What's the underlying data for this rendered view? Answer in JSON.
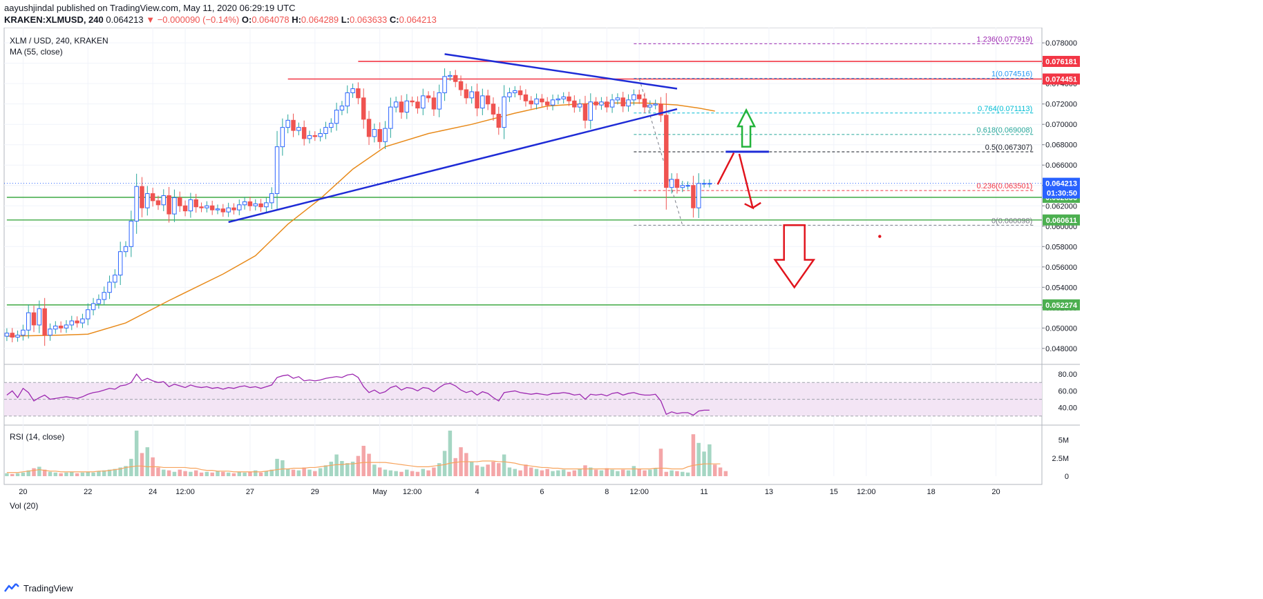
{
  "header": {
    "line1": "aayushjindal published on TradingView.com, May 11, 2020 06:29:19 UTC",
    "symbol": "KRAKEN:XLMUSD, 240",
    "last": "0.064213",
    "change": "▼ −0.000090 (−0.14%)",
    "o_label": "O:",
    "o": "0.064078",
    "h_label": "H:",
    "h": "0.064289",
    "l_label": "L:",
    "l": "0.063633",
    "c_label": "C:",
    "c": "0.064213"
  },
  "panes": {
    "price_title": "XLM / USD, 240, KRAKEN",
    "ma_label": "MA (55, close)",
    "rsi_label": "RSI (14, close)",
    "vol_label": "Vol (20)"
  },
  "footer": {
    "brand": "TradingView"
  },
  "chart_data": {
    "type": "candlestick",
    "symbol": "XLM / USD",
    "timeframe": "240",
    "exchange": "KRAKEN",
    "ylim": [
      0.0465,
      0.0795
    ],
    "price_ticks": [
      "0.078000",
      "0.076000",
      "0.074000",
      "0.072000",
      "0.070000",
      "0.068000",
      "0.066000",
      "0.064000",
      "0.062000",
      "0.060000",
      "0.058000",
      "0.056000",
      "0.054000",
      "0.052000",
      "0.050000",
      "0.048000"
    ],
    "x_ticks": [
      {
        "label": "20",
        "bar": 3
      },
      {
        "label": "22",
        "bar": 15
      },
      {
        "label": "24",
        "bar": 27
      },
      {
        "label": "12:00",
        "bar": 33
      },
      {
        "label": "27",
        "bar": 45
      },
      {
        "label": "29",
        "bar": 57
      },
      {
        "label": "May",
        "bar": 69
      },
      {
        "label": "12:00",
        "bar": 75
      },
      {
        "label": "4",
        "bar": 87
      },
      {
        "label": "6",
        "bar": 99
      },
      {
        "label": "8",
        "bar": 111
      },
      {
        "label": "12:00",
        "bar": 117
      },
      {
        "label": "11",
        "bar": 129
      },
      {
        "label": "13",
        "bar": 141
      },
      {
        "label": "15",
        "bar": 153
      },
      {
        "label": "12:00",
        "bar": 159
      },
      {
        "label": "18",
        "bar": 171
      },
      {
        "label": "20",
        "bar": 183
      }
    ],
    "total_bars": 192,
    "candles_close": [
      0.0495,
      0.0491,
      0.0493,
      0.0498,
      0.0515,
      0.0503,
      0.0519,
      0.0493,
      0.0499,
      0.0502,
      0.05,
      0.0503,
      0.0507,
      0.0505,
      0.0509,
      0.0518,
      0.0524,
      0.0528,
      0.0535,
      0.0545,
      0.0552,
      0.0575,
      0.058,
      0.0605,
      0.0639,
      0.0618,
      0.0632,
      0.0625,
      0.0621,
      0.063,
      0.0612,
      0.0628,
      0.062,
      0.0615,
      0.0626,
      0.0619,
      0.0618,
      0.062,
      0.0616,
      0.0617,
      0.0614,
      0.0618,
      0.0616,
      0.0621,
      0.0624,
      0.062,
      0.0622,
      0.0619,
      0.0623,
      0.0632,
      0.0678,
      0.0697,
      0.0704,
      0.0694,
      0.0697,
      0.0686,
      0.0689,
      0.0688,
      0.0691,
      0.0697,
      0.0701,
      0.0714,
      0.0718,
      0.0731,
      0.0735,
      0.0726,
      0.0705,
      0.0688,
      0.0695,
      0.0683,
      0.0696,
      0.0717,
      0.0722,
      0.0712,
      0.0723,
      0.0722,
      0.0716,
      0.0728,
      0.0726,
      0.0715,
      0.0731,
      0.0747,
      0.0748,
      0.0742,
      0.0734,
      0.0726,
      0.0732,
      0.0716,
      0.0728,
      0.072,
      0.071,
      0.0697,
      0.0727,
      0.0731,
      0.0733,
      0.0729,
      0.0723,
      0.072,
      0.0725,
      0.0722,
      0.0719,
      0.0724,
      0.0725,
      0.0727,
      0.0723,
      0.0717,
      0.072,
      0.0704,
      0.0722,
      0.0719,
      0.0722,
      0.0717,
      0.0724,
      0.0726,
      0.0718,
      0.0724,
      0.0729,
      0.0725,
      0.0717,
      0.0719,
      0.072,
      0.0709,
      0.0638,
      0.0646,
      0.0638,
      0.064,
      0.064,
      0.0618,
      0.0642,
      0.0642,
      0.0642
    ],
    "ma_label": "MA (55, close)",
    "ma_points": [
      [
        0,
        0.0492
      ],
      [
        10,
        0.0493
      ],
      [
        15,
        0.0494
      ],
      [
        22,
        0.0505
      ],
      [
        30,
        0.0527
      ],
      [
        40,
        0.0553
      ],
      [
        46,
        0.0571
      ],
      [
        52,
        0.0602
      ],
      [
        58,
        0.0627
      ],
      [
        64,
        0.0656
      ],
      [
        70,
        0.0678
      ],
      [
        78,
        0.0691
      ],
      [
        86,
        0.07
      ],
      [
        94,
        0.0711
      ],
      [
        100,
        0.0718
      ],
      [
        106,
        0.072
      ],
      [
        112,
        0.0721
      ],
      [
        118,
        0.0721
      ],
      [
        124,
        0.0719
      ],
      [
        128,
        0.0716
      ],
      [
        131,
        0.0713
      ]
    ],
    "horizontal_levels": [
      {
        "price": 0.076181,
        "label": "0.076181",
        "color": "#f23645",
        "from_bar": 65
      },
      {
        "price": 0.074451,
        "label": "0.074451",
        "color": "#f23645",
        "from_bar": 52
      },
      {
        "price": 0.062836,
        "label": "0.062836",
        "color": "#4caf50",
        "from_bar": 0
      },
      {
        "price": 0.060611,
        "label": "0.060611",
        "color": "#4caf50",
        "from_bar": 0
      },
      {
        "price": 0.052274,
        "label": "0.052274",
        "color": "#4caf50",
        "from_bar": 0
      }
    ],
    "fibonacci": {
      "from_bar": 116,
      "to_bar": 190,
      "levels": [
        {
          "ratio": "1.236",
          "price": 0.077919,
          "label": "1.236(0.077919)",
          "color": "#9c27b0"
        },
        {
          "ratio": "1",
          "price": 0.074516,
          "label": "1(0.074516)",
          "color": "#2196f3"
        },
        {
          "ratio": "0.764",
          "price": 0.071113,
          "label": "0.764(0.071113)",
          "color": "#00bcd4"
        },
        {
          "ratio": "0.618",
          "price": 0.069008,
          "label": "0.618(0.069008)",
          "color": "#26a69a"
        },
        {
          "ratio": "0.5",
          "price": 0.067307,
          "label": "0.5(0.067307)",
          "color": "#131722"
        },
        {
          "ratio": "0.236",
          "price": 0.063501,
          "label": "0.236(0.063501)",
          "color": "#f23645"
        },
        {
          "ratio": "0",
          "price": 0.060098,
          "label": "0(0.060098)",
          "color": "#787b86"
        }
      ]
    },
    "trendlines": [
      {
        "from": [
          41,
          0.0604
        ],
        "to": [
          124,
          0.0715
        ],
        "color": "#1e2bd6"
      },
      {
        "from": [
          81,
          0.0769
        ],
        "to": [
          124,
          0.0735
        ],
        "color": "#1e2bd6"
      }
    ],
    "last_price": {
      "price": 0.064213,
      "label": "0.064213",
      "timer": "01:30:50"
    },
    "rsi": {
      "label": "RSI (14, close)",
      "ticks": [
        "80.00",
        "60.00",
        "40.00"
      ],
      "ylim": [
        20,
        90
      ],
      "band": [
        30,
        70
      ],
      "values": [
        55,
        60,
        52,
        63,
        58,
        48,
        52,
        55,
        50,
        51,
        52,
        53,
        52,
        51,
        53,
        56,
        58,
        59,
        61,
        63,
        62,
        66,
        67,
        70,
        80,
        72,
        75,
        72,
        70,
        71,
        65,
        68,
        66,
        64,
        67,
        65,
        64,
        65,
        63,
        64,
        62,
        64,
        63,
        65,
        66,
        64,
        65,
        63,
        65,
        67,
        76,
        78,
        79,
        75,
        77,
        72,
        73,
        72,
        73,
        75,
        76,
        77,
        76,
        79,
        80,
        76,
        65,
        58,
        61,
        57,
        59,
        64,
        66,
        61,
        64,
        63,
        60,
        64,
        63,
        59,
        64,
        68,
        69,
        66,
        61,
        58,
        60,
        55,
        59,
        57,
        52,
        48,
        58,
        59,
        60,
        58,
        57,
        56,
        57,
        56,
        55,
        57,
        57,
        58,
        57,
        55,
        56,
        50,
        56,
        55,
        56,
        54,
        57,
        58,
        55,
        57,
        58,
        56,
        55,
        55,
        56,
        48,
        32,
        35,
        33,
        34,
        34,
        31,
        36,
        37,
        37
      ]
    },
    "volume": {
      "label": "Vol (20)",
      "ticks": [
        "5M",
        "2.5M",
        "0"
      ],
      "ylim": [
        0,
        6.3
      ],
      "values_millions": [
        0.4,
        0.3,
        0.4,
        0.5,
        0.8,
        1.1,
        1.3,
        0.9,
        0.6,
        0.5,
        0.4,
        0.5,
        0.6,
        0.4,
        0.5,
        0.6,
        0.5,
        0.7,
        0.8,
        0.9,
        1.0,
        1.2,
        1.4,
        2.4,
        6.3,
        3.2,
        4.0,
        2.6,
        1.2,
        0.9,
        0.8,
        0.6,
        0.9,
        0.7,
        0.6,
        0.8,
        0.5,
        0.6,
        0.5,
        0.7,
        0.6,
        0.5,
        0.4,
        0.6,
        0.5,
        0.6,
        0.8,
        0.5,
        0.7,
        0.9,
        2.4,
        2.2,
        1.0,
        0.9,
        0.8,
        1.2,
        0.9,
        0.7,
        1.1,
        1.5,
        2.0,
        3.0,
        2.1,
        1.8,
        2.0,
        2.8,
        4.2,
        3.1,
        1.6,
        1.2,
        0.9,
        0.8,
        0.7,
        0.6,
        0.9,
        0.7,
        0.6,
        1.0,
        0.8,
        1.2,
        1.8,
        3.5,
        6.3,
        2.5,
        4.0,
        3.2,
        2.0,
        1.5,
        1.3,
        1.6,
        2.0,
        1.8,
        3.0,
        1.2,
        1.0,
        0.8,
        1.6,
        1.2,
        1.0,
        0.8,
        1.0,
        0.7,
        0.8,
        0.9,
        0.6,
        0.8,
        1.0,
        1.5,
        1.2,
        0.9,
        0.8,
        1.1,
        0.9,
        0.7,
        0.9,
        0.8,
        1.4,
        1.0,
        0.8,
        0.9,
        1.1,
        3.8,
        0.6,
        0.8,
        0.7,
        0.6,
        0.5,
        5.8,
        4.6,
        3.4,
        4.4,
        1.6,
        1.2,
        0.7
      ],
      "ma_values_millions": [
        0.5,
        0.5,
        0.5,
        0.6,
        0.7,
        0.8,
        0.9,
        0.8,
        0.7,
        0.7,
        0.6,
        0.6,
        0.6,
        0.6,
        0.6,
        0.6,
        0.6,
        0.7,
        0.7,
        0.8,
        0.9,
        1.0,
        1.2,
        1.3,
        1.4,
        1.4,
        1.3,
        1.3,
        1.3,
        1.2,
        1.2,
        1.2,
        1.2,
        1.2,
        1.1,
        1.1,
        0.9,
        0.8,
        0.8,
        0.7,
        0.7,
        0.7,
        0.6,
        0.6,
        0.6,
        0.6,
        0.6,
        0.6,
        0.7,
        0.8,
        0.9,
        1.0,
        1.0,
        1.1,
        1.1,
        1.1,
        1.2,
        1.2,
        1.3,
        1.4,
        1.5,
        1.6,
        1.6,
        1.7,
        1.7,
        1.8,
        1.9,
        1.9,
        1.9,
        1.9,
        1.9,
        1.8,
        1.7,
        1.6,
        1.5,
        1.4,
        1.3,
        1.3,
        1.3,
        1.4,
        1.5,
        1.6,
        1.8,
        1.9,
        2.0,
        2.0,
        2.0,
        2.0,
        2.1,
        2.1,
        2.1,
        2.0,
        2.0,
        1.9,
        1.8,
        1.6,
        1.5,
        1.4,
        1.3,
        1.2,
        1.2,
        1.1,
        1.1,
        1.0,
        1.0,
        1.0,
        1.0,
        1.0,
        1.0,
        1.0,
        1.0,
        1.0,
        1.0,
        1.0,
        1.0,
        1.0,
        1.0,
        1.0,
        1.0,
        1.0,
        1.1,
        1.1,
        1.1,
        1.0,
        1.0,
        1.0,
        1.3,
        1.5,
        1.6,
        1.7,
        1.7,
        1.7,
        1.7
      ]
    },
    "colors": {
      "up": "#26a69a",
      "up_body": "#2962ff",
      "down": "#ef5350",
      "ma": "#e88a1a",
      "rsi_line": "#9c27b0",
      "rsi_band": "#f3e5f5",
      "vol_up": "#a5d6c3",
      "vol_down": "#f4a6a8",
      "vol_ma": "#f7a35c",
      "arrow_up": "#22b33a",
      "arrow_down": "#e1141d",
      "projection": "#e1141d"
    }
  }
}
